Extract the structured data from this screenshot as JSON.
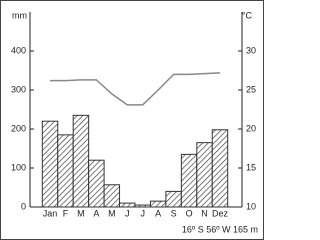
{
  "chart_data": {
    "type": "climograph",
    "y_label": "mm",
    "y2_label": "°C",
    "annotation": "16º S 56º W 165 m",
    "categories": [
      "Jan",
      "F",
      "M",
      "A",
      "M",
      "J",
      "J",
      "A",
      "S",
      "O",
      "N",
      "Dez"
    ],
    "series": [
      {
        "type": "bar",
        "color": "#333333",
        "values": [
          220,
          185,
          235,
          120,
          57,
          10,
          5,
          15,
          40,
          135,
          165,
          198
        ]
      },
      {
        "type": "line",
        "axis": "y2",
        "color": "#888888",
        "values": [
          26.2,
          26.2,
          26.3,
          26.3,
          24.5,
          23.1,
          23.1,
          25.0,
          27.0,
          27.0,
          27.1,
          27.2
        ]
      }
    ],
    "ylim": [
      0,
      500
    ],
    "yticks": [
      0,
      100,
      200,
      300,
      400
    ],
    "y2lim": [
      10,
      35
    ],
    "y2ticks": [
      10,
      15,
      20,
      25,
      30
    ]
  }
}
